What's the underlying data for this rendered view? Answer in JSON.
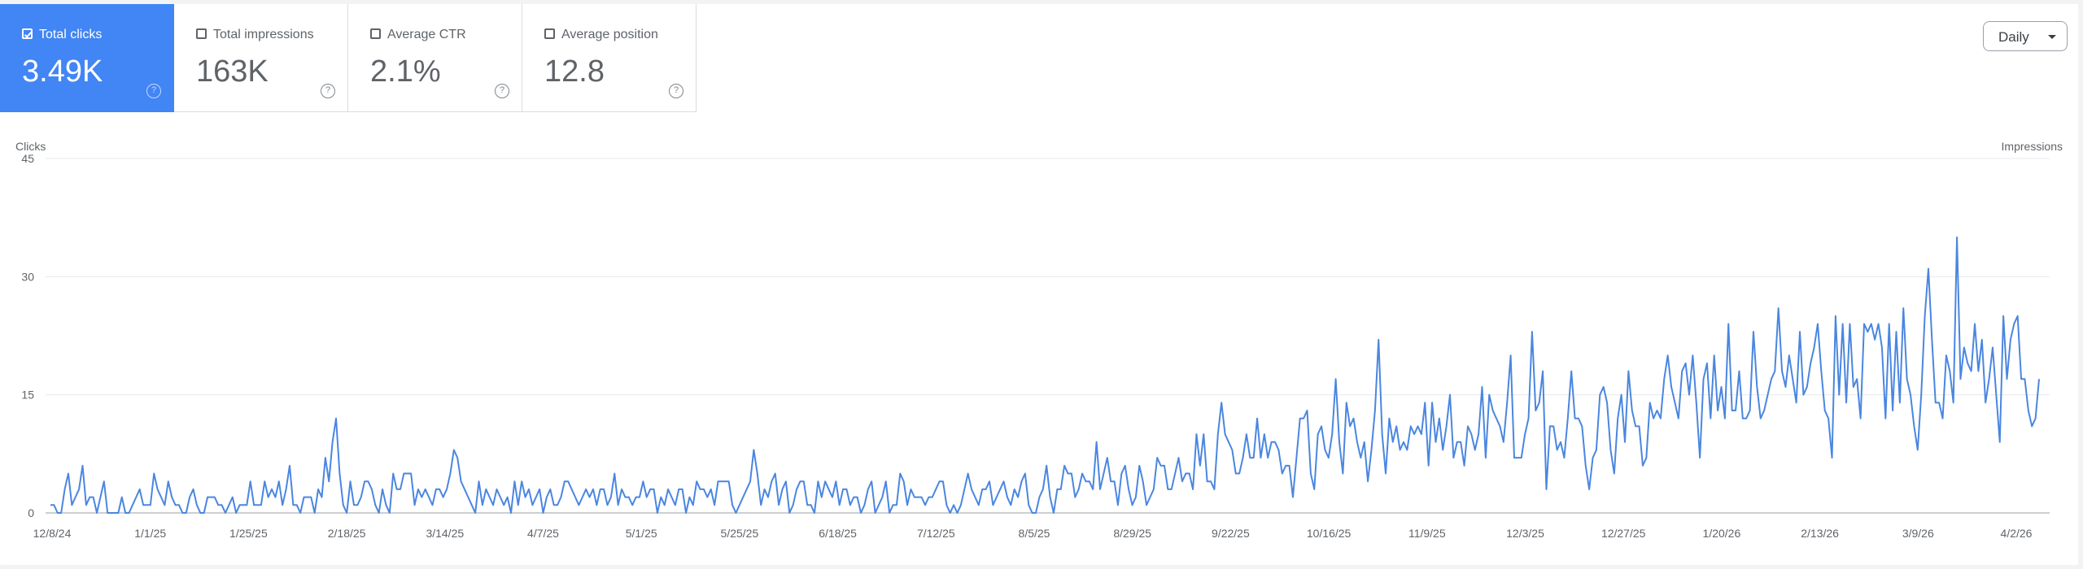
{
  "metrics": [
    {
      "label": "Total clicks",
      "value": "3.49K",
      "active": true
    },
    {
      "label": "Total impressions",
      "value": "163K",
      "active": false
    },
    {
      "label": "Average CTR",
      "value": "2.1%",
      "active": false
    },
    {
      "label": "Average position",
      "value": "12.8",
      "active": false
    }
  ],
  "help_glyph": "?",
  "granularity": "Daily",
  "colors": {
    "accent": "#4285f4",
    "line": "#4a86e0",
    "grid": "#e8eaed"
  },
  "chart_data": {
    "type": "line",
    "ylabel": "Clicks",
    "y2label": "Impressions",
    "ylim": [
      0,
      45
    ],
    "yticks": [
      0,
      15,
      30,
      45
    ],
    "x_start": "12/8/24",
    "x_end": "4/6/26",
    "xticks": [
      "12/8/24",
      "1/1/25",
      "1/25/25",
      "2/18/25",
      "3/14/25",
      "4/7/25",
      "5/1/25",
      "5/25/25",
      "6/18/25",
      "7/12/25",
      "8/5/25",
      "8/29/25",
      "9/22/25",
      "10/16/25",
      "11/9/25",
      "12/3/25",
      "12/27/25",
      "1/20/26",
      "2/13/26",
      "3/9/26",
      "4/2/26"
    ],
    "grid": true,
    "series": [
      {
        "values": [
          1,
          1,
          0,
          0,
          3,
          5,
          1,
          2,
          3,
          6,
          1,
          2,
          2,
          0,
          2,
          4,
          0,
          0,
          0,
          0,
          2,
          0,
          0,
          1,
          2,
          3,
          1,
          1,
          1,
          5,
          3,
          2,
          1,
          4,
          2,
          1,
          1,
          0,
          0,
          2,
          3,
          1,
          0,
          0,
          2,
          2,
          2,
          1,
          1,
          0,
          1,
          2,
          0,
          1,
          1,
          1,
          4,
          1,
          1,
          1,
          4,
          2,
          3,
          2,
          4,
          1,
          3,
          6,
          1,
          1,
          0,
          2,
          2,
          2,
          0,
          3,
          2,
          7,
          4,
          9,
          12,
          5,
          1,
          0,
          4,
          1,
          1,
          2,
          4,
          4,
          3,
          1,
          0,
          3,
          1,
          0,
          5,
          3,
          3,
          5,
          5,
          5,
          1,
          3,
          2,
          3,
          2,
          1,
          3,
          3,
          2,
          3,
          5,
          8,
          7,
          4,
          3,
          2,
          1,
          0,
          4,
          1,
          3,
          2,
          1,
          3,
          2,
          1,
          2,
          0,
          4,
          1,
          4,
          2,
          3,
          1,
          2,
          3,
          0,
          2,
          3,
          1,
          1,
          2,
          4,
          4,
          3,
          2,
          1,
          2,
          3,
          2,
          3,
          1,
          3,
          3,
          1,
          2,
          5,
          1,
          3,
          2,
          2,
          1,
          2,
          2,
          4,
          2,
          3,
          3,
          0,
          2,
          1,
          3,
          2,
          1,
          3,
          3,
          0,
          2,
          1,
          4,
          3,
          3,
          2,
          3,
          1,
          4,
          4,
          4,
          4,
          1,
          0,
          1,
          2,
          3,
          4,
          8,
          5,
          1,
          3,
          2,
          4,
          5,
          1,
          3,
          4,
          0,
          1,
          3,
          4,
          4,
          1,
          1,
          0,
          4,
          2,
          4,
          3,
          2,
          4,
          1,
          3,
          3,
          1,
          2,
          2,
          0,
          1,
          3,
          4,
          0,
          1,
          2,
          4,
          0,
          1,
          1,
          5,
          4,
          1,
          3,
          2,
          2,
          2,
          1,
          2,
          2,
          3,
          4,
          4,
          1,
          0,
          1,
          0,
          1,
          3,
          5,
          3,
          2,
          1,
          3,
          3,
          4,
          1,
          2,
          3,
          4,
          2,
          1,
          3,
          2,
          4,
          5,
          1,
          0,
          0,
          2,
          3,
          6,
          2,
          0,
          3,
          3,
          6,
          5,
          5,
          2,
          3,
          5,
          4,
          4,
          3,
          9,
          3,
          5,
          7,
          4,
          4,
          1,
          5,
          6,
          3,
          1,
          2,
          6,
          4,
          1,
          2,
          3,
          7,
          6,
          6,
          3,
          3,
          5,
          7,
          4,
          5,
          5,
          3,
          10,
          6,
          10,
          4,
          4,
          3,
          10,
          14,
          10,
          9,
          8,
          5,
          5,
          7,
          10,
          7,
          7,
          12,
          7,
          10,
          7,
          9,
          9,
          8,
          5,
          6,
          6,
          2,
          7,
          12,
          12,
          13,
          5,
          3,
          10,
          11,
          8,
          7,
          10,
          17,
          9,
          5,
          14,
          11,
          12,
          9,
          7,
          9,
          4,
          8,
          13,
          22,
          10,
          5,
          12,
          9,
          11,
          8,
          9,
          8,
          11,
          10,
          11,
          10,
          14,
          6,
          14,
          9,
          12,
          8,
          11,
          15,
          7,
          9,
          9,
          6,
          11,
          10,
          8,
          10,
          16,
          7,
          15,
          13,
          12,
          11,
          9,
          14,
          20,
          7,
          7,
          7,
          10,
          12,
          23,
          13,
          14,
          18,
          3,
          11,
          11,
          8,
          9,
          7,
          12,
          18,
          12,
          12,
          11,
          6,
          3,
          7,
          8,
          15,
          16,
          14,
          8,
          5,
          12,
          15,
          9,
          18,
          13,
          11,
          11,
          6,
          7,
          14,
          12,
          13,
          12,
          17,
          20,
          16,
          14,
          12,
          18,
          19,
          15,
          20,
          14,
          7,
          17,
          19,
          12,
          20,
          13,
          16,
          12,
          24,
          13,
          13,
          18,
          12,
          12,
          13,
          23,
          16,
          12,
          13,
          15,
          17,
          18,
          26,
          18,
          16,
          20,
          17,
          14,
          23,
          15,
          16,
          19,
          21,
          24,
          18,
          13,
          12,
          7,
          25,
          15,
          24,
          14,
          24,
          16,
          17,
          12,
          24,
          23,
          24,
          22,
          24,
          21,
          12,
          24,
          13,
          23,
          14,
          26,
          17,
          15,
          11,
          8,
          15,
          25,
          31,
          22,
          14,
          14,
          12,
          20,
          18,
          14,
          35,
          17,
          21,
          19,
          18,
          24,
          18,
          22,
          14,
          17,
          21,
          15,
          9,
          25,
          17,
          22,
          24,
          25,
          17,
          17,
          13,
          11,
          12,
          17
        ]
      }
    ]
  }
}
